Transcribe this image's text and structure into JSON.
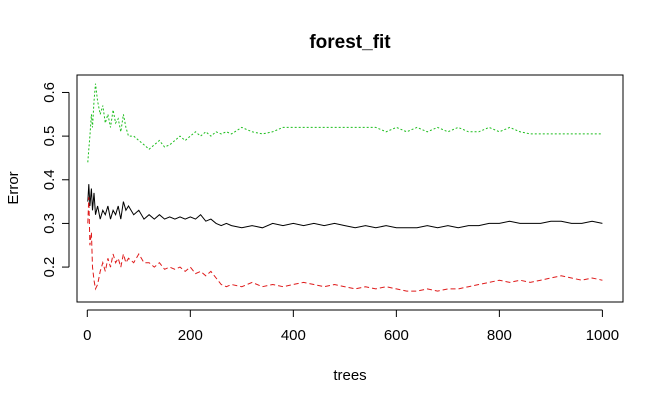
{
  "chart_data": {
    "type": "line",
    "title": "forest_fit",
    "xlabel": "trees",
    "ylabel": "Error",
    "xlim": [
      -20,
      1040
    ],
    "ylim": [
      0.12,
      0.64
    ],
    "xticks": [
      0,
      200,
      400,
      600,
      800,
      1000
    ],
    "yticks": [
      0.2,
      0.3,
      0.4,
      0.5,
      0.6
    ],
    "grid": false,
    "legend": "none",
    "series": [
      {
        "color": "#000000",
        "dash": "solid",
        "x": [
          1,
          3,
          5,
          8,
          10,
          13,
          16,
          20,
          25,
          30,
          35,
          40,
          45,
          50,
          55,
          60,
          65,
          70,
          75,
          80,
          90,
          100,
          110,
          120,
          130,
          140,
          150,
          160,
          170,
          180,
          190,
          200,
          210,
          220,
          230,
          240,
          250,
          260,
          270,
          280,
          300,
          320,
          340,
          360,
          380,
          400,
          420,
          440,
          460,
          480,
          500,
          520,
          540,
          560,
          580,
          600,
          620,
          640,
          660,
          680,
          700,
          720,
          740,
          760,
          780,
          800,
          820,
          840,
          860,
          880,
          900,
          920,
          940,
          960,
          980,
          1000
        ],
        "y": [
          0.35,
          0.39,
          0.34,
          0.38,
          0.33,
          0.37,
          0.32,
          0.34,
          0.31,
          0.33,
          0.32,
          0.34,
          0.31,
          0.33,
          0.32,
          0.34,
          0.31,
          0.35,
          0.33,
          0.34,
          0.32,
          0.33,
          0.31,
          0.32,
          0.31,
          0.32,
          0.31,
          0.315,
          0.31,
          0.315,
          0.31,
          0.315,
          0.31,
          0.32,
          0.305,
          0.31,
          0.3,
          0.295,
          0.3,
          0.295,
          0.29,
          0.295,
          0.29,
          0.3,
          0.295,
          0.3,
          0.295,
          0.3,
          0.295,
          0.3,
          0.295,
          0.29,
          0.295,
          0.29,
          0.295,
          0.29,
          0.29,
          0.29,
          0.295,
          0.29,
          0.295,
          0.29,
          0.295,
          0.295,
          0.3,
          0.3,
          0.305,
          0.3,
          0.3,
          0.3,
          0.305,
          0.305,
          0.3,
          0.3,
          0.305,
          0.3
        ]
      },
      {
        "color": "#DF1B1B",
        "dash": "5,3",
        "x": [
          1,
          3,
          5,
          8,
          10,
          13,
          16,
          20,
          25,
          30,
          35,
          40,
          45,
          50,
          55,
          60,
          65,
          70,
          75,
          80,
          90,
          100,
          110,
          120,
          130,
          140,
          150,
          160,
          170,
          180,
          190,
          200,
          210,
          220,
          230,
          240,
          250,
          260,
          270,
          280,
          300,
          320,
          340,
          360,
          380,
          400,
          420,
          440,
          460,
          480,
          500,
          520,
          540,
          560,
          580,
          600,
          620,
          640,
          660,
          680,
          700,
          720,
          740,
          760,
          780,
          800,
          820,
          840,
          860,
          880,
          900,
          920,
          940,
          960,
          980,
          1000
        ],
        "y": [
          0.3,
          0.36,
          0.25,
          0.28,
          0.2,
          0.17,
          0.15,
          0.16,
          0.19,
          0.21,
          0.19,
          0.22,
          0.2,
          0.23,
          0.21,
          0.22,
          0.2,
          0.23,
          0.21,
          0.22,
          0.21,
          0.23,
          0.21,
          0.21,
          0.2,
          0.21,
          0.195,
          0.2,
          0.195,
          0.2,
          0.19,
          0.2,
          0.185,
          0.19,
          0.18,
          0.19,
          0.175,
          0.16,
          0.155,
          0.16,
          0.155,
          0.165,
          0.155,
          0.16,
          0.155,
          0.16,
          0.165,
          0.16,
          0.155,
          0.16,
          0.155,
          0.15,
          0.155,
          0.15,
          0.155,
          0.15,
          0.145,
          0.145,
          0.15,
          0.145,
          0.15,
          0.15,
          0.155,
          0.16,
          0.165,
          0.17,
          0.165,
          0.17,
          0.165,
          0.17,
          0.175,
          0.18,
          0.175,
          0.17,
          0.175,
          0.17
        ]
      },
      {
        "color": "#1DBE1D",
        "dash": "2,2",
        "x": [
          1,
          3,
          5,
          8,
          10,
          13,
          16,
          20,
          25,
          30,
          35,
          40,
          45,
          50,
          55,
          60,
          65,
          70,
          75,
          80,
          90,
          100,
          110,
          120,
          130,
          140,
          150,
          160,
          170,
          180,
          190,
          200,
          210,
          220,
          230,
          240,
          250,
          260,
          270,
          280,
          300,
          320,
          340,
          360,
          380,
          400,
          420,
          440,
          460,
          480,
          500,
          520,
          540,
          560,
          580,
          600,
          620,
          640,
          660,
          680,
          700,
          720,
          740,
          760,
          780,
          800,
          820,
          840,
          860,
          880,
          900,
          920,
          940,
          960,
          980,
          1000
        ],
        "y": [
          0.44,
          0.47,
          0.5,
          0.55,
          0.52,
          0.58,
          0.62,
          0.58,
          0.55,
          0.57,
          0.53,
          0.55,
          0.52,
          0.56,
          0.53,
          0.54,
          0.51,
          0.55,
          0.52,
          0.5,
          0.5,
          0.49,
          0.48,
          0.47,
          0.48,
          0.49,
          0.475,
          0.48,
          0.49,
          0.5,
          0.49,
          0.5,
          0.51,
          0.5,
          0.51,
          0.5,
          0.51,
          0.505,
          0.51,
          0.505,
          0.52,
          0.51,
          0.505,
          0.51,
          0.52,
          0.52,
          0.52,
          0.52,
          0.52,
          0.52,
          0.52,
          0.52,
          0.52,
          0.52,
          0.51,
          0.52,
          0.51,
          0.52,
          0.51,
          0.52,
          0.51,
          0.52,
          0.51,
          0.51,
          0.52,
          0.51,
          0.52,
          0.51,
          0.505,
          0.505,
          0.505,
          0.505,
          0.505,
          0.505,
          0.505,
          0.505
        ]
      }
    ]
  }
}
